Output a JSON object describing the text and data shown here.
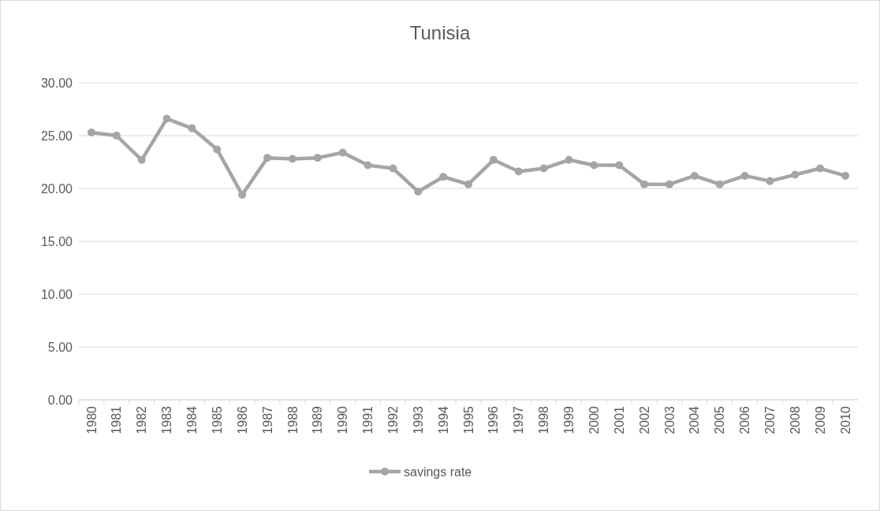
{
  "chart_data": {
    "type": "line",
    "title": "Tunisia",
    "categories": [
      "1980",
      "1981",
      "1982",
      "1983",
      "1984",
      "1985",
      "1986",
      "1987",
      "1988",
      "1989",
      "1990",
      "1991",
      "1992",
      "1993",
      "1994",
      "1995",
      "1996",
      "1997",
      "1998",
      "1999",
      "2000",
      "2001",
      "2002",
      "2003",
      "2004",
      "2005",
      "2006",
      "2007",
      "2008",
      "2009",
      "2010"
    ],
    "series": [
      {
        "name": "savings rate",
        "color": "#a5a5a5",
        "values": [
          25.3,
          25.0,
          22.7,
          26.6,
          25.7,
          23.7,
          19.4,
          22.9,
          22.8,
          22.9,
          23.4,
          22.2,
          21.9,
          19.7,
          21.1,
          20.4,
          22.7,
          21.6,
          21.9,
          22.7,
          22.2,
          22.2,
          20.4,
          20.4,
          21.2,
          20.4,
          21.2,
          20.7,
          21.3,
          21.9,
          21.2
        ]
      }
    ],
    "ylim": [
      0,
      30
    ],
    "yticks": [
      {
        "value": 0,
        "label": "0.00"
      },
      {
        "value": 5,
        "label": "5.00"
      },
      {
        "value": 10,
        "label": "10.00"
      },
      {
        "value": 15,
        "label": "15.00"
      },
      {
        "value": 20,
        "label": "20.00"
      },
      {
        "value": 25,
        "label": "25.00"
      },
      {
        "value": 30,
        "label": "30.00"
      }
    ],
    "grid": "y",
    "legend": "bottom",
    "marker": "circle",
    "line_style": "solid"
  }
}
